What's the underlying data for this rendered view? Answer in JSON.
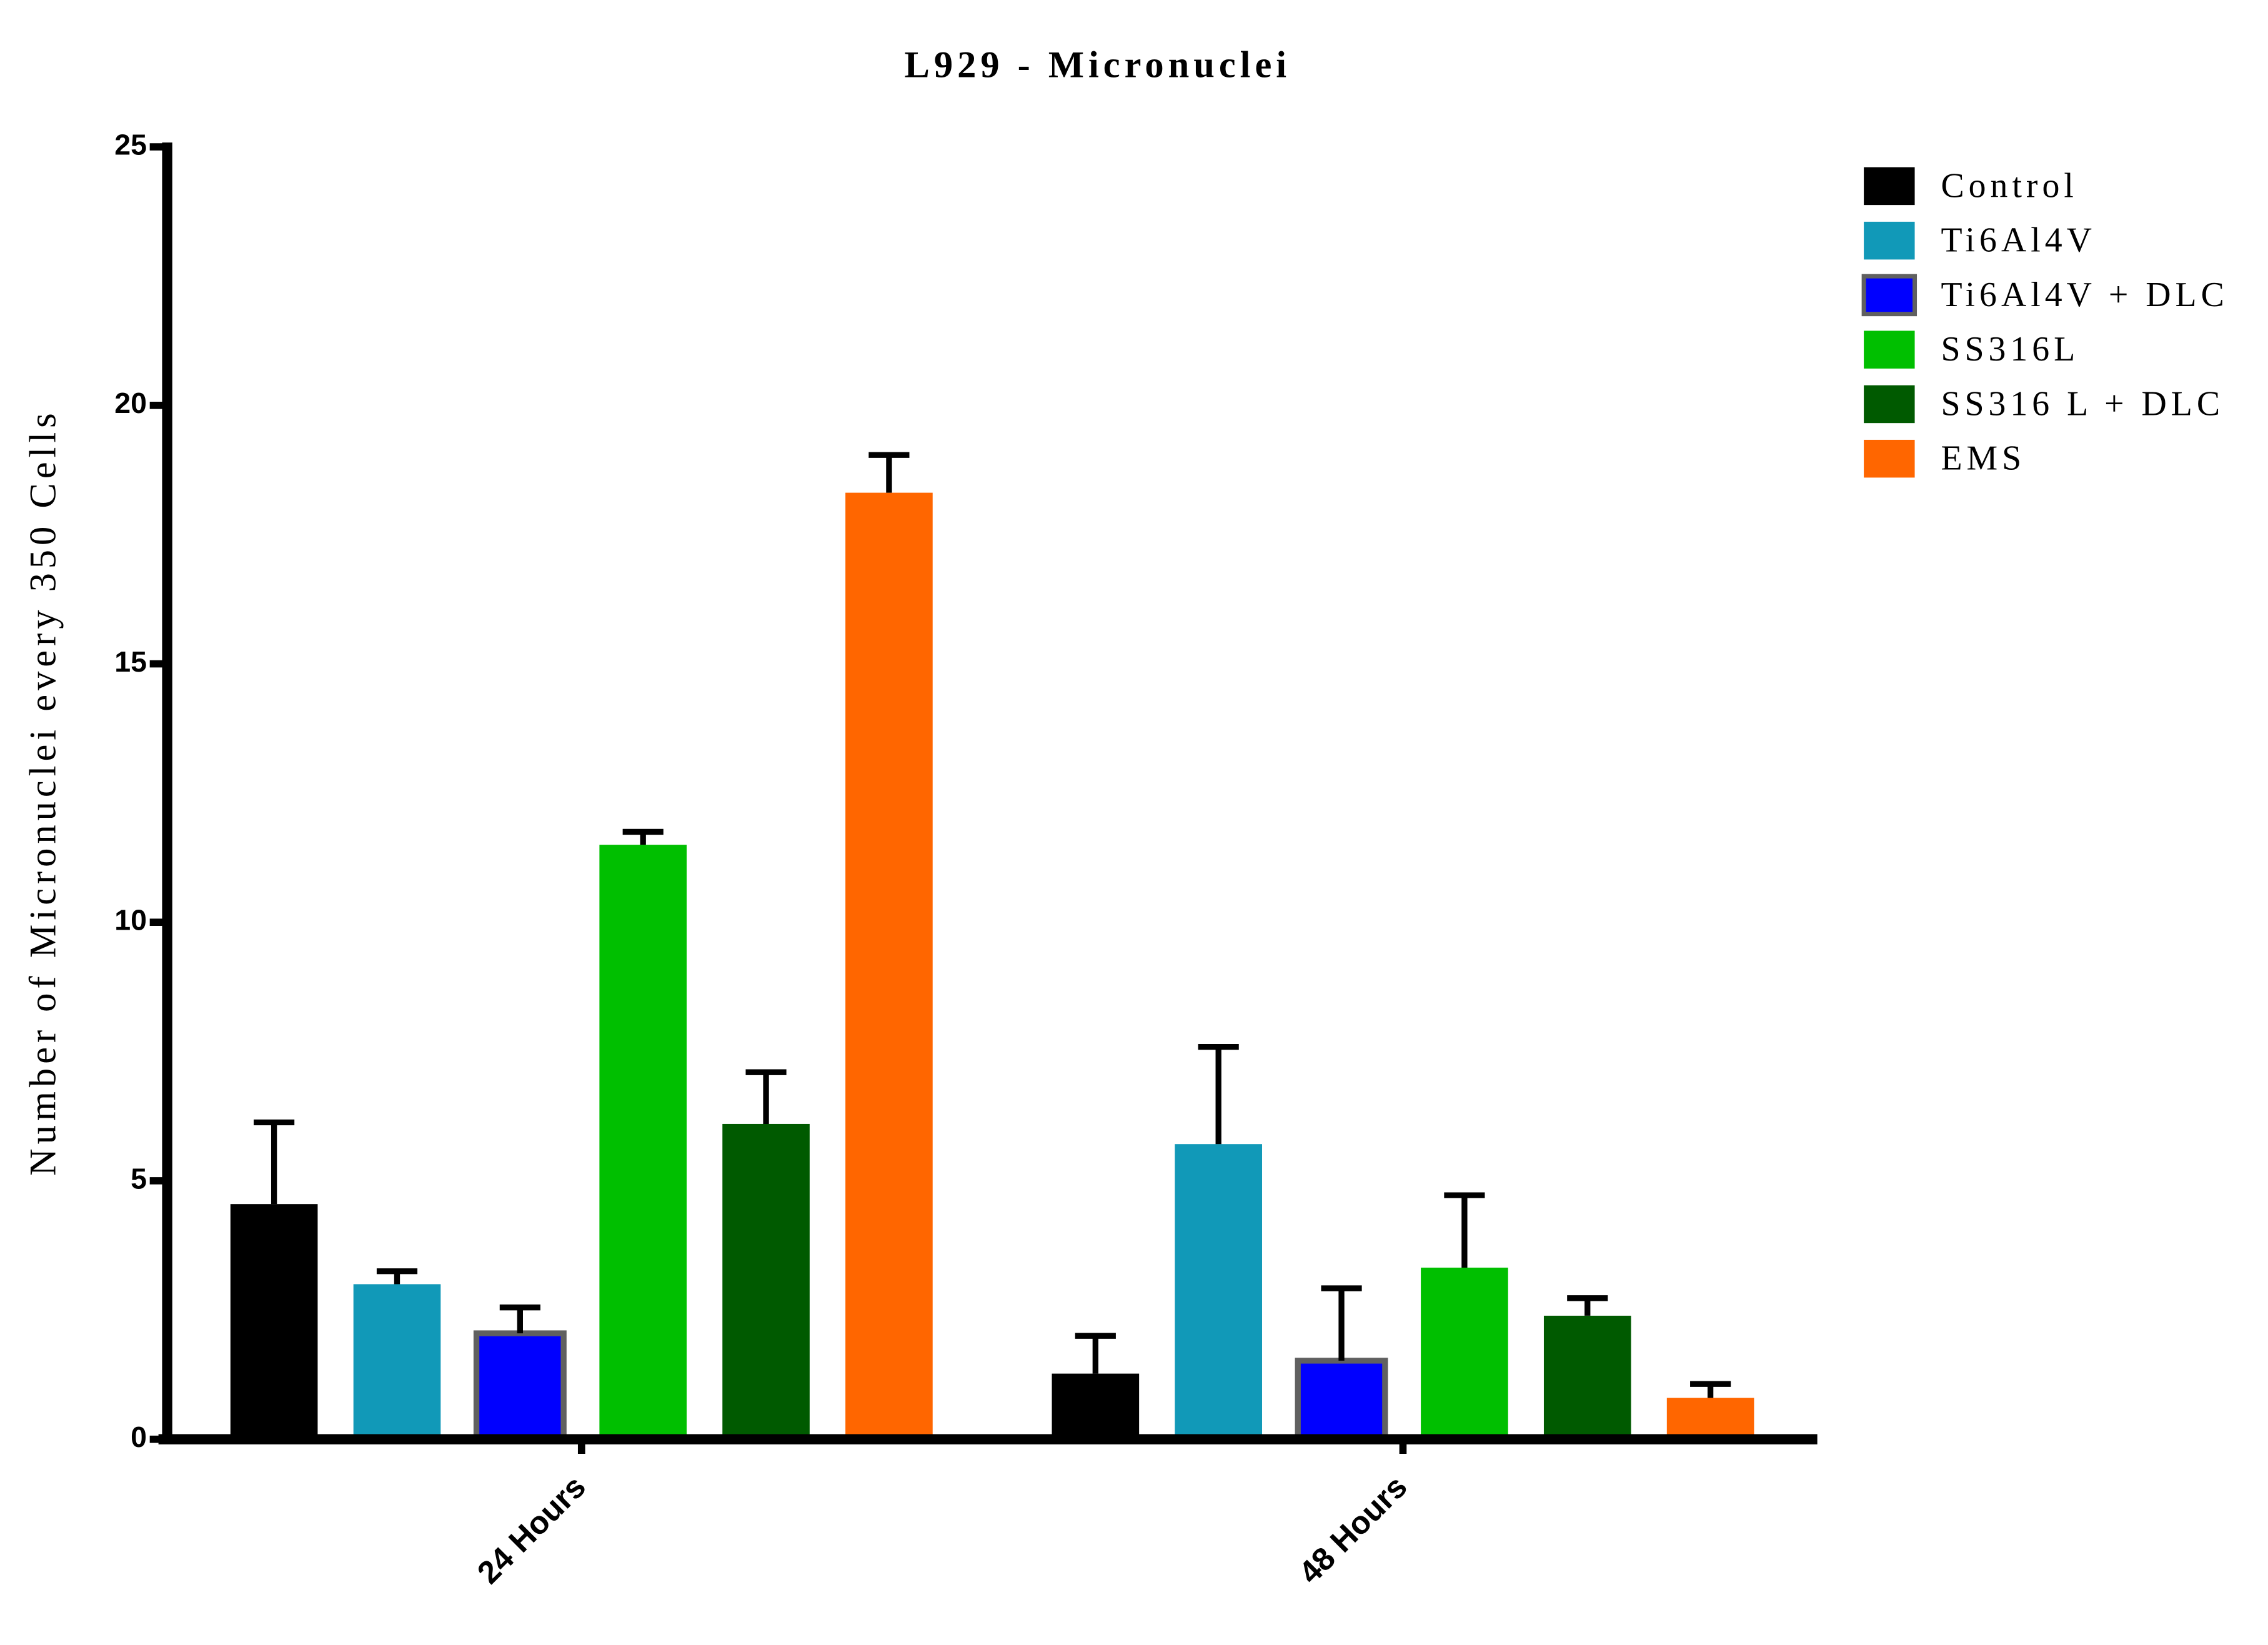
{
  "chart_data": {
    "type": "bar",
    "title": "L929 - Micronuclei",
    "y_label": "Number of Micronuclei every 350 Cells",
    "categories": [
      "24 Hours",
      "48 Hours"
    ],
    "ylim": [
      0,
      25
    ],
    "yticks": [
      0,
      5,
      10,
      15,
      20,
      25
    ],
    "series": [
      {
        "name": "Control",
        "color": "#000000",
        "values": [
          4.55,
          1.27
        ],
        "errors": [
          1.58,
          0.73
        ]
      },
      {
        "name": "Ti6Al4V",
        "color": "#1199b8",
        "values": [
          3.0,
          5.71
        ],
        "errors": [
          0.25,
          1.88
        ]
      },
      {
        "name": "Ti6Al4V + DLC",
        "color": "#0000ff",
        "edgecolor": "#606060",
        "values": [
          2.05,
          1.52
        ],
        "errors": [
          0.5,
          1.4
        ]
      },
      {
        "name": "SS316L",
        "color": "#00bf00",
        "values": [
          11.5,
          3.32
        ],
        "errors": [
          0.25,
          1.4
        ]
      },
      {
        "name": "SS316 L + DLC",
        "color": "#005a00",
        "values": [
          6.1,
          2.39
        ],
        "errors": [
          1.0,
          0.34
        ]
      },
      {
        "name": "EMS",
        "color": "#ff6600",
        "values": [
          18.31,
          0.8
        ],
        "errors": [
          0.73,
          0.27
        ]
      }
    ]
  }
}
